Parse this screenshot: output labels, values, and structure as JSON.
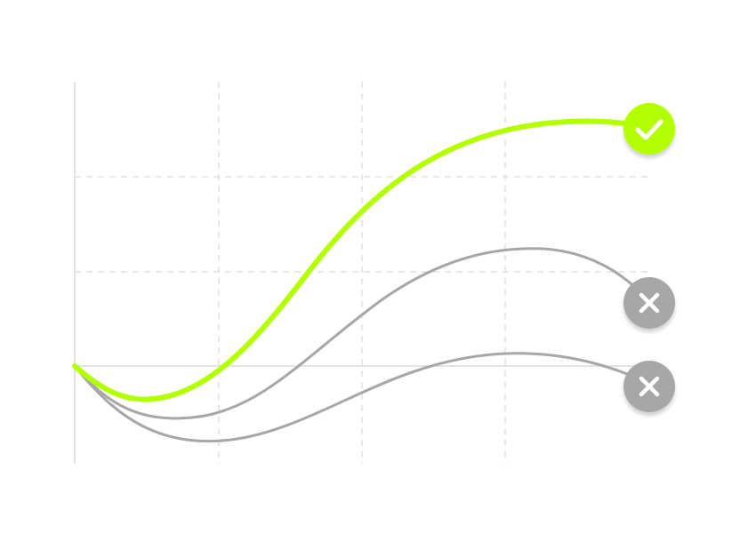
{
  "colors": {
    "background": "#ffffff",
    "winner": "#b3ff00",
    "loser": "#a7a7a7",
    "grid_dashed": "#e0e0e0",
    "grid_solid": "#d9d9d9",
    "icon_glyph": "#ffffff"
  },
  "lines": [
    {
      "id": "line-winner",
      "outcome": "success",
      "color_key": "winner",
      "end_icon": "check-icon"
    },
    {
      "id": "line-middle",
      "outcome": "failure",
      "color_key": "loser",
      "end_icon": "x-icon"
    },
    {
      "id": "line-bottom",
      "outcome": "failure",
      "color_key": "loser",
      "end_icon": "x-icon"
    }
  ],
  "grid": {
    "vertical_lines": 4,
    "horizontal_lines": 3,
    "style": "dashed",
    "baseline_style": "solid"
  }
}
